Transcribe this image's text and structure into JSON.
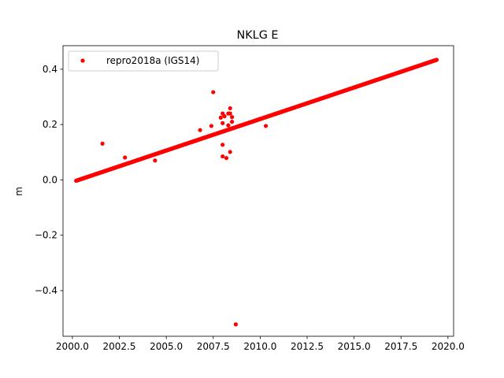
{
  "chart_data": {
    "type": "scatter",
    "title": "NKLG E",
    "xlabel": "",
    "ylabel": "m",
    "xlim": [
      1999.5,
      2020.3
    ],
    "ylim": [
      -0.565,
      0.485
    ],
    "x_ticks": [
      2000.0,
      2002.5,
      2005.0,
      2007.5,
      2010.0,
      2012.5,
      2015.0,
      2017.5,
      2020.0
    ],
    "x_tick_labels": [
      "2000.0",
      "2002.5",
      "2005.0",
      "2007.5",
      "2010.0",
      "2012.5",
      "2015.0",
      "2017.5",
      "2020.0"
    ],
    "y_ticks": [
      -0.4,
      -0.2,
      0.0,
      0.2,
      0.4
    ],
    "y_tick_labels": [
      "−0.4",
      "−0.2",
      "0.0",
      "0.2",
      "0.4"
    ],
    "grid": false,
    "legend": {
      "position": "top-left",
      "entries": [
        "repro2018a (IGS14)"
      ]
    },
    "series": [
      {
        "name": "repro2018a (IGS14)",
        "color": "#ff0000",
        "marker": "circle",
        "trend": {
          "x_start": 2000.2,
          "y_start": -0.003,
          "x_end": 2019.4,
          "y_end": 0.434,
          "step": 0.02
        },
        "outliers": [
          {
            "x": 2001.6,
            "y": 0.131
          },
          {
            "x": 2002.8,
            "y": 0.081
          },
          {
            "x": 2004.4,
            "y": 0.07
          },
          {
            "x": 2006.8,
            "y": 0.18
          },
          {
            "x": 2007.4,
            "y": 0.195
          },
          {
            "x": 2007.5,
            "y": 0.317
          },
          {
            "x": 2007.9,
            "y": 0.225
          },
          {
            "x": 2008.0,
            "y": 0.24
          },
          {
            "x": 2008.0,
            "y": 0.205
          },
          {
            "x": 2008.0,
            "y": 0.127
          },
          {
            "x": 2008.0,
            "y": 0.085
          },
          {
            "x": 2008.1,
            "y": 0.23
          },
          {
            "x": 2008.2,
            "y": 0.079
          },
          {
            "x": 2008.3,
            "y": 0.24
          },
          {
            "x": 2008.3,
            "y": 0.197
          },
          {
            "x": 2008.4,
            "y": 0.259
          },
          {
            "x": 2008.4,
            "y": 0.24
          },
          {
            "x": 2008.4,
            "y": 0.101
          },
          {
            "x": 2008.5,
            "y": 0.227
          },
          {
            "x": 2008.5,
            "y": 0.21
          },
          {
            "x": 2008.7,
            "y": -0.522
          },
          {
            "x": 2010.3,
            "y": 0.195
          }
        ]
      }
    ]
  }
}
